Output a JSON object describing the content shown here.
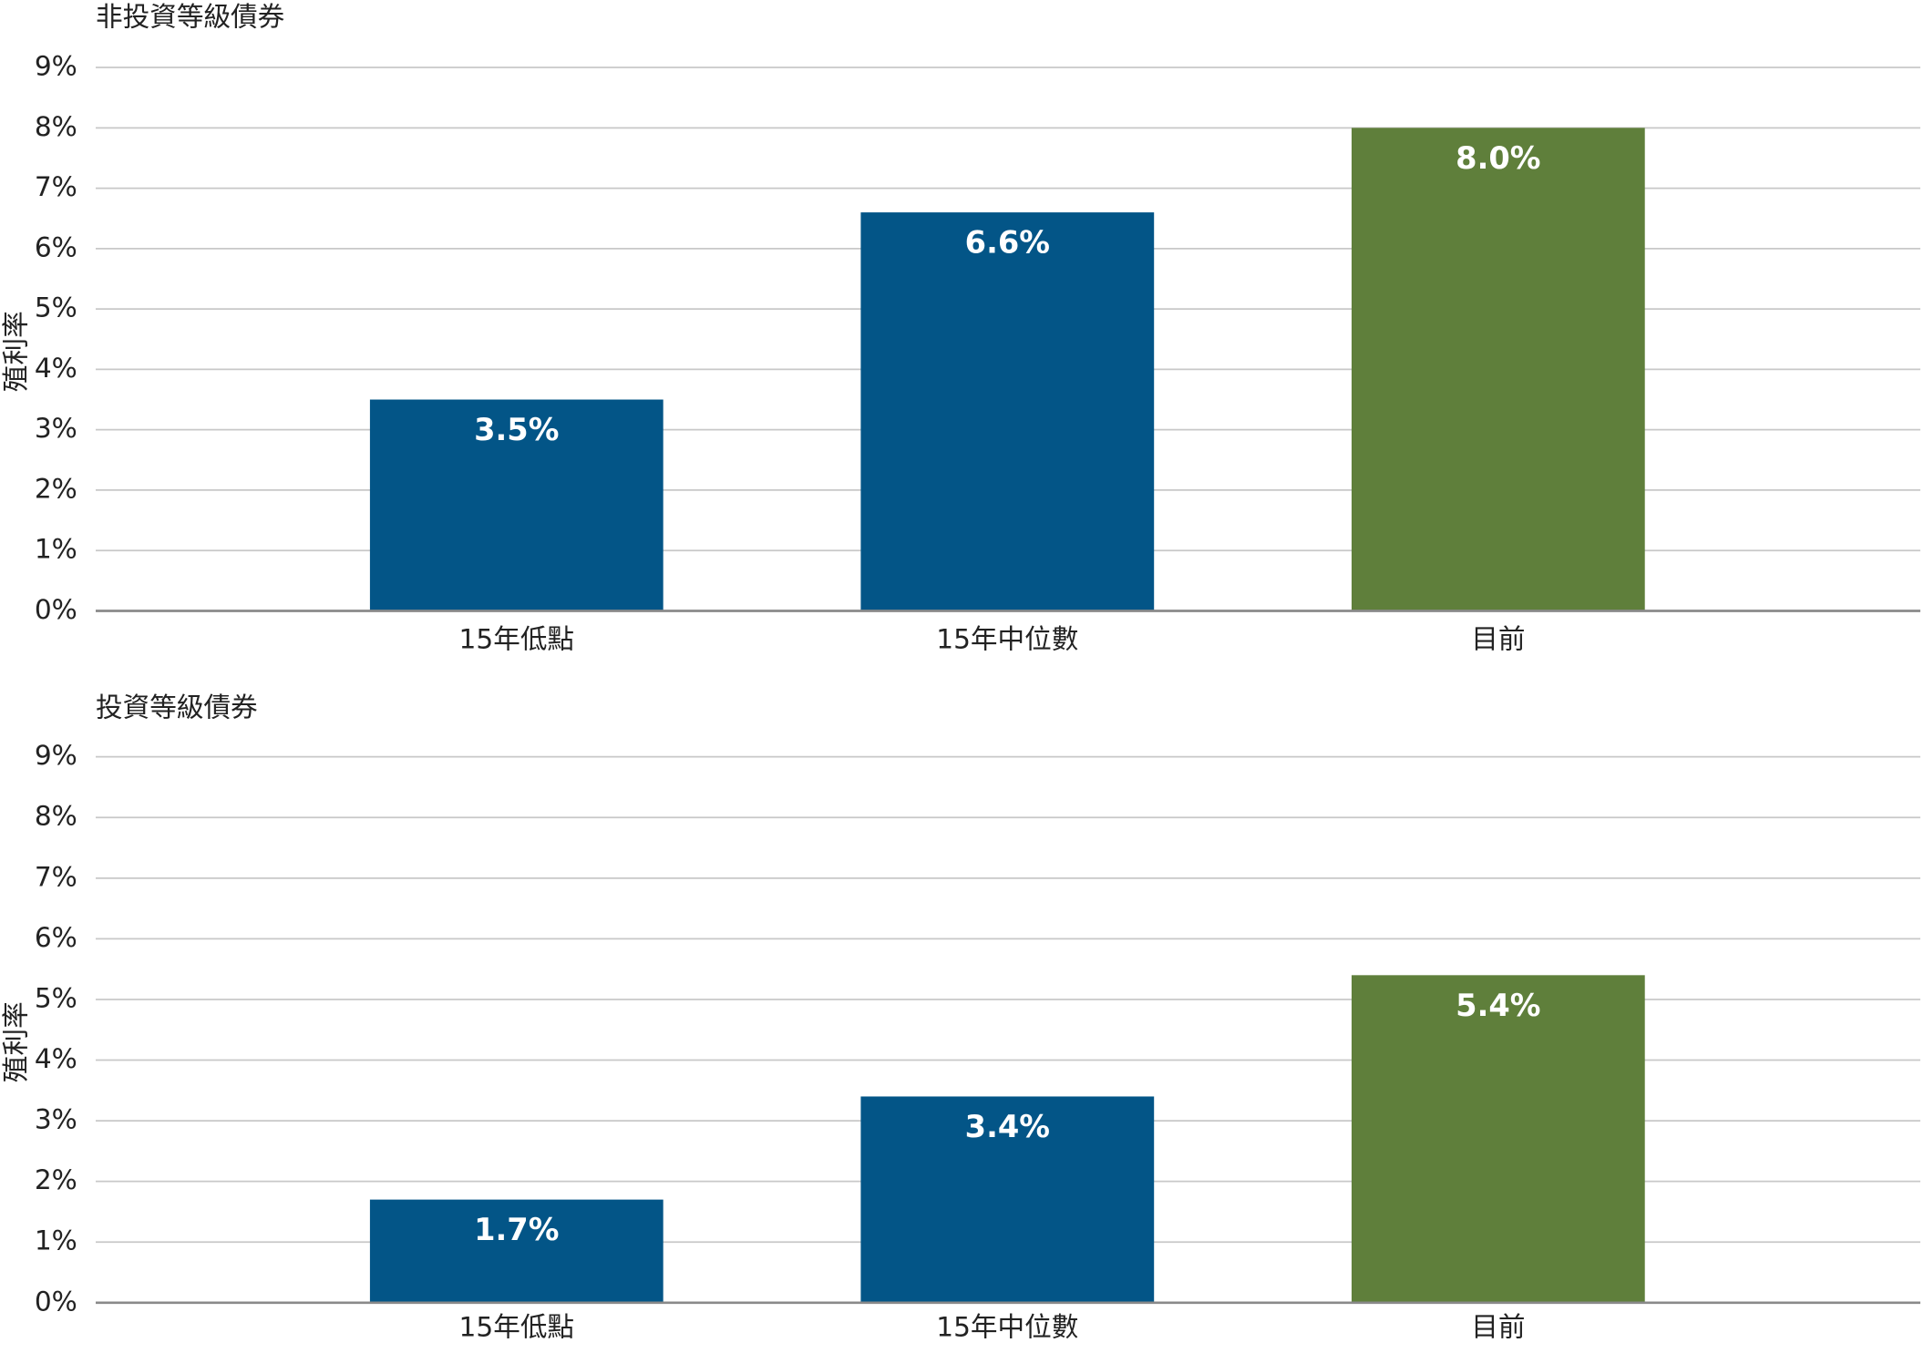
{
  "chart_data": [
    {
      "type": "bar",
      "title": "非投資等級債券",
      "y_label": "殖利率",
      "categories": [
        "15年低點",
        "15年中位數",
        "目前"
      ],
      "values": [
        3.5,
        6.6,
        8.0
      ],
      "value_labels": [
        "3.5%",
        "6.6%",
        "8.0%"
      ],
      "colors": [
        "#035587",
        "#035587",
        "#5f7f3b"
      ],
      "ylim": [
        0,
        9
      ],
      "yticks": [
        {
          "value": 0,
          "label": "0%"
        },
        {
          "value": 1,
          "label": "1%"
        },
        {
          "value": 2,
          "label": "2%"
        },
        {
          "value": 3,
          "label": "3%"
        },
        {
          "value": 4,
          "label": "4%"
        },
        {
          "value": 5,
          "label": "5%"
        },
        {
          "value": 6,
          "label": "6%"
        },
        {
          "value": 7,
          "label": "7%"
        },
        {
          "value": 8,
          "label": "8%"
        },
        {
          "value": 9,
          "label": "9%"
        }
      ],
      "grid": true
    },
    {
      "type": "bar",
      "title": "投資等級債券",
      "y_label": "殖利率",
      "categories": [
        "15年低點",
        "15年中位數",
        "目前"
      ],
      "values": [
        1.7,
        3.4,
        5.4
      ],
      "value_labels": [
        "1.7%",
        "3.4%",
        "5.4%"
      ],
      "colors": [
        "#035587",
        "#035587",
        "#5f7f3b"
      ],
      "ylim": [
        0,
        9
      ],
      "yticks": [
        {
          "value": 0,
          "label": "0%"
        },
        {
          "value": 1,
          "label": "1%"
        },
        {
          "value": 2,
          "label": "2%"
        },
        {
          "value": 3,
          "label": "3%"
        },
        {
          "value": 4,
          "label": "4%"
        },
        {
          "value": 5,
          "label": "5%"
        },
        {
          "value": 6,
          "label": "6%"
        },
        {
          "value": 7,
          "label": "7%"
        },
        {
          "value": 8,
          "label": "8%"
        },
        {
          "value": 9,
          "label": "9%"
        }
      ],
      "grid": true
    }
  ]
}
